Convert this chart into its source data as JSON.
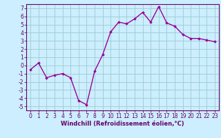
{
  "x": [
    0,
    1,
    2,
    3,
    4,
    5,
    6,
    7,
    8,
    9,
    10,
    11,
    12,
    13,
    14,
    15,
    16,
    17,
    18,
    19,
    20,
    21,
    22,
    23
  ],
  "y": [
    -0.5,
    0.3,
    -1.5,
    -1.2,
    -1.0,
    -1.5,
    -4.3,
    -4.8,
    -0.7,
    1.3,
    4.1,
    5.3,
    5.1,
    5.7,
    6.5,
    5.3,
    7.2,
    5.2,
    4.8,
    3.8,
    3.3,
    3.3,
    3.1,
    2.9
  ],
  "xlabel": "Windchill (Refroidissement éolien,°C)",
  "ylim": [
    -5.5,
    7.5
  ],
  "xlim": [
    -0.5,
    23.5
  ],
  "yticks": [
    -5,
    -4,
    -3,
    -2,
    -1,
    0,
    1,
    2,
    3,
    4,
    5,
    6,
    7
  ],
  "xticks": [
    0,
    1,
    2,
    3,
    4,
    5,
    6,
    7,
    8,
    9,
    10,
    11,
    12,
    13,
    14,
    15,
    16,
    17,
    18,
    19,
    20,
    21,
    22,
    23
  ],
  "line_color": "#990099",
  "marker": "D",
  "marker_size": 1.8,
  "bg_color": "#cceeff",
  "grid_color": "#99cccc",
  "axes_color": "#660066",
  "tick_label_color": "#660066",
  "xlabel_color": "#660066",
  "line_width": 1.0,
  "tick_fontsize": 5.5,
  "xlabel_fontsize": 6.0
}
